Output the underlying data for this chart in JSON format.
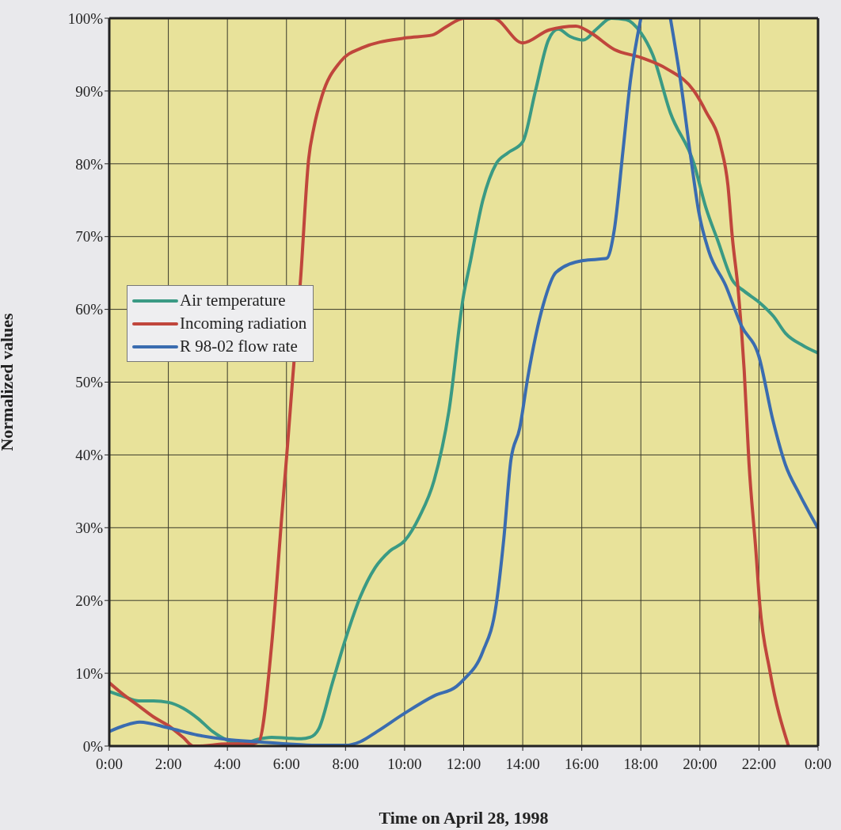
{
  "chart_data": {
    "type": "line",
    "xlabel": "Time on April 28, 1998",
    "ylabel": "Normalized values",
    "xlim": [
      0,
      24
    ],
    "xticks": [
      {
        "value": 0,
        "label": "0:00"
      },
      {
        "value": 2,
        "label": "2:00"
      },
      {
        "value": 4,
        "label": "4:00"
      },
      {
        "value": 6,
        "label": "6:00"
      },
      {
        "value": 8,
        "label": "8:00"
      },
      {
        "value": 10,
        "label": "10:00"
      },
      {
        "value": 12,
        "label": "12:00"
      },
      {
        "value": 14,
        "label": "14:00"
      },
      {
        "value": 16,
        "label": "16:00"
      },
      {
        "value": 18,
        "label": "18:00"
      },
      {
        "value": 20,
        "label": "20:00"
      },
      {
        "value": 22,
        "label": "22:00"
      },
      {
        "value": 24,
        "label": "0:00"
      }
    ],
    "ylim": [
      0,
      100
    ],
    "yticks": [
      {
        "value": 0,
        "label": "0%"
      },
      {
        "value": 10,
        "label": "10%"
      },
      {
        "value": 20,
        "label": "20%"
      },
      {
        "value": 30,
        "label": "30%"
      },
      {
        "value": 40,
        "label": "40%"
      },
      {
        "value": 50,
        "label": "50%"
      },
      {
        "value": 60,
        "label": "60%"
      },
      {
        "value": 70,
        "label": "70%"
      },
      {
        "value": 80,
        "label": "80%"
      },
      {
        "value": 90,
        "label": "90%"
      },
      {
        "value": 100,
        "label": "100%"
      }
    ],
    "grid": true,
    "legend": "left",
    "marker": "none",
    "line_style": "solid",
    "series": [
      {
        "name": "Air temperature",
        "color": "#3a9a84",
        "x": [
          0,
          0.5,
          1,
          1.5,
          2,
          2.5,
          3,
          3.5,
          4,
          4.5,
          5,
          5.5,
          6,
          6.5,
          6.8,
          7.1,
          7.55,
          8,
          8.5,
          9,
          9.5,
          10,
          10.5,
          11,
          11.5,
          12,
          12.2,
          12.65,
          13.1,
          13.5,
          14,
          14.43,
          14.87,
          15.2,
          15.6,
          16.05,
          16.5,
          17,
          17.5,
          18,
          18.4,
          19,
          19.8,
          20.2,
          20.6,
          21.1,
          21.5,
          22,
          22.5,
          22.9,
          23.5,
          24
        ],
        "values": [
          7.5,
          6.8,
          6.2,
          6.2,
          6,
          5.2,
          3.8,
          2,
          0.8,
          0.3,
          0.9,
          1.2,
          1.1,
          1,
          1.2,
          2.4,
          8.6,
          14.7,
          20.5,
          24.5,
          26.8,
          28.2,
          31.5,
          36.5,
          46,
          62,
          66,
          75,
          80,
          81.5,
          83,
          90,
          97,
          98.5,
          97.5,
          97,
          98.5,
          100,
          99.8,
          98,
          95,
          87,
          80,
          74,
          69.5,
          64,
          62.5,
          61,
          59,
          56.7,
          55,
          54
        ]
      },
      {
        "name": "Incoming radiation",
        "color": "#c0463c",
        "x": [
          0,
          0.5,
          1,
          1.5,
          2,
          2.5,
          2.85,
          3,
          4,
          4.8,
          5.06,
          5.5,
          5.85,
          6.03,
          6.2,
          6.48,
          6.75,
          6.93,
          7.2,
          7.82,
          8.54,
          10.05,
          10.95,
          11.4,
          12.02,
          12.5,
          13,
          14,
          14.9,
          15.8,
          16.3,
          17.1,
          18,
          18.9,
          19.8,
          20.2,
          20.7,
          20.95,
          21.1,
          21.3,
          21.5,
          21.66,
          21.9,
          22.02,
          22.37,
          23
        ],
        "values": [
          8.7,
          7,
          5.5,
          4,
          2.8,
          1.2,
          0,
          0,
          0.3,
          0.3,
          0.6,
          14,
          32,
          41,
          50,
          64.3,
          80.6,
          85,
          89.3,
          94,
          95.9,
          97.3,
          97.7,
          98.8,
          100,
          100,
          100,
          96.6,
          98.4,
          98.9,
          98,
          95.7,
          94.6,
          93,
          90,
          87.2,
          82.5,
          77,
          69.8,
          62.5,
          51.6,
          39,
          26.6,
          19.8,
          10.3,
          0
        ]
      },
      {
        "name": "R 98-02 flow rate",
        "color": "#3a6cb0",
        "x": [
          0,
          0.5,
          1.03,
          2,
          3,
          4,
          5,
          6,
          7,
          8,
          8.5,
          9.07,
          10,
          11,
          11.76,
          12.02,
          12.64,
          13.1,
          13.36,
          13.6,
          13.9,
          14.17,
          14.7,
          15.13,
          16.04,
          16.84,
          17.1,
          17.4,
          17.65,
          18,
          18.5,
          19,
          19.34,
          19.7,
          19.96,
          20.3,
          20.87,
          21.4,
          22,
          22.47,
          22.9,
          23.36,
          24
        ],
        "values": [
          2,
          2.8,
          3.3,
          2.5,
          1.5,
          0.9,
          0.6,
          0.3,
          0.1,
          0.1,
          0.6,
          2,
          4.5,
          6.9,
          8.2,
          9.2,
          12.9,
          19.4,
          28.5,
          39.3,
          43.7,
          50.6,
          60.7,
          65.1,
          66.7,
          67,
          70.9,
          82,
          91.5,
          100,
          null,
          100,
          91.5,
          80.6,
          73.4,
          68,
          63.3,
          57.8,
          53.5,
          44.8,
          38.6,
          34.7,
          29.9
        ]
      }
    ]
  }
}
